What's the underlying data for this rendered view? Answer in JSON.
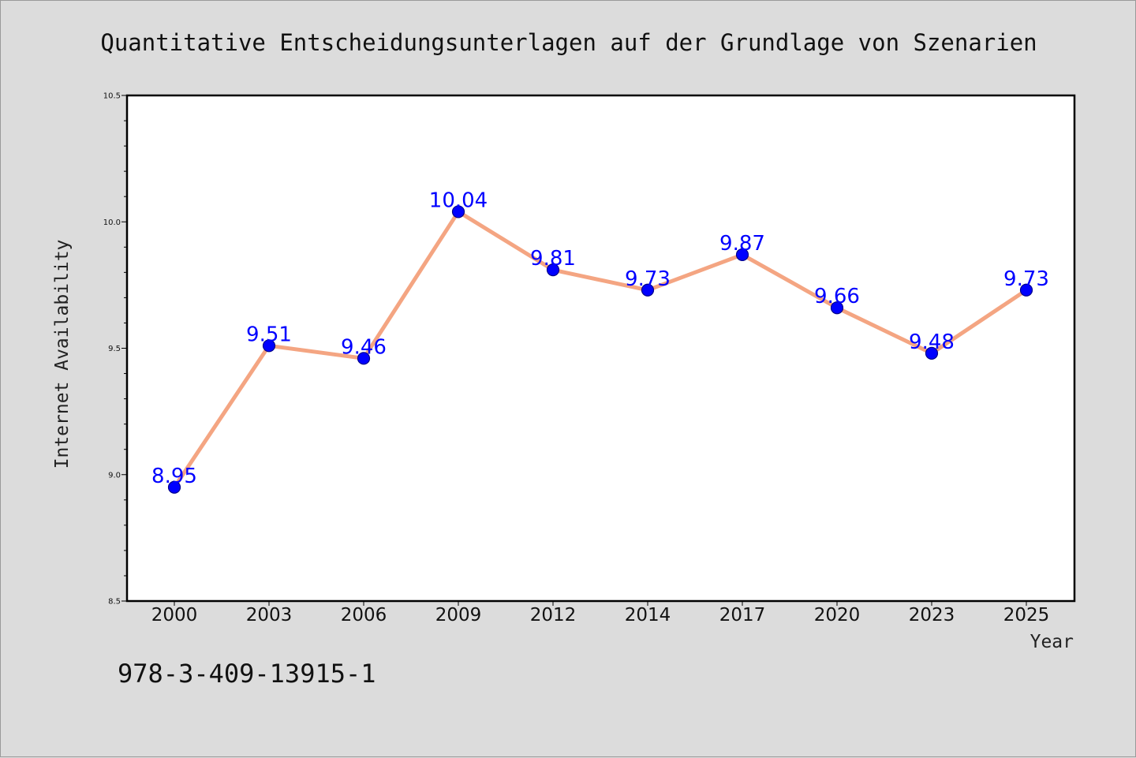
{
  "colors": {
    "background": "#dcdcdc",
    "plot_bg": "#ffffff",
    "line": "#f4a582",
    "marker": "#0000ff",
    "marker_edge": "#00008b",
    "label": "#0000ff"
  },
  "isbn": "978-3-409-13915-1",
  "chart_data": {
    "type": "line",
    "title": "Quantitative Entscheidungsunterlagen auf der Grundlage von Szenarien",
    "xlabel": "Year",
    "ylabel": "Internet Availability",
    "categories": [
      "2000",
      "2003",
      "2006",
      "2009",
      "2012",
      "2014",
      "2017",
      "2020",
      "2023",
      "2025"
    ],
    "series": [
      {
        "values": [
          8.95,
          9.51,
          9.46,
          10.04,
          9.81,
          9.73,
          9.87,
          9.66,
          9.48,
          9.73
        ],
        "data_labels": [
          "8.95",
          "9.51",
          "9.46",
          "10.04",
          "9.81",
          "9.73",
          "9.87",
          "9.66",
          "9.48",
          "9.73"
        ]
      }
    ],
    "ylim": [
      8.5,
      10.5
    ],
    "yticks": [
      "8.5",
      "9.0",
      "9.5",
      "10.0",
      "10.5"
    ],
    "grid": false,
    "legend": "none"
  }
}
